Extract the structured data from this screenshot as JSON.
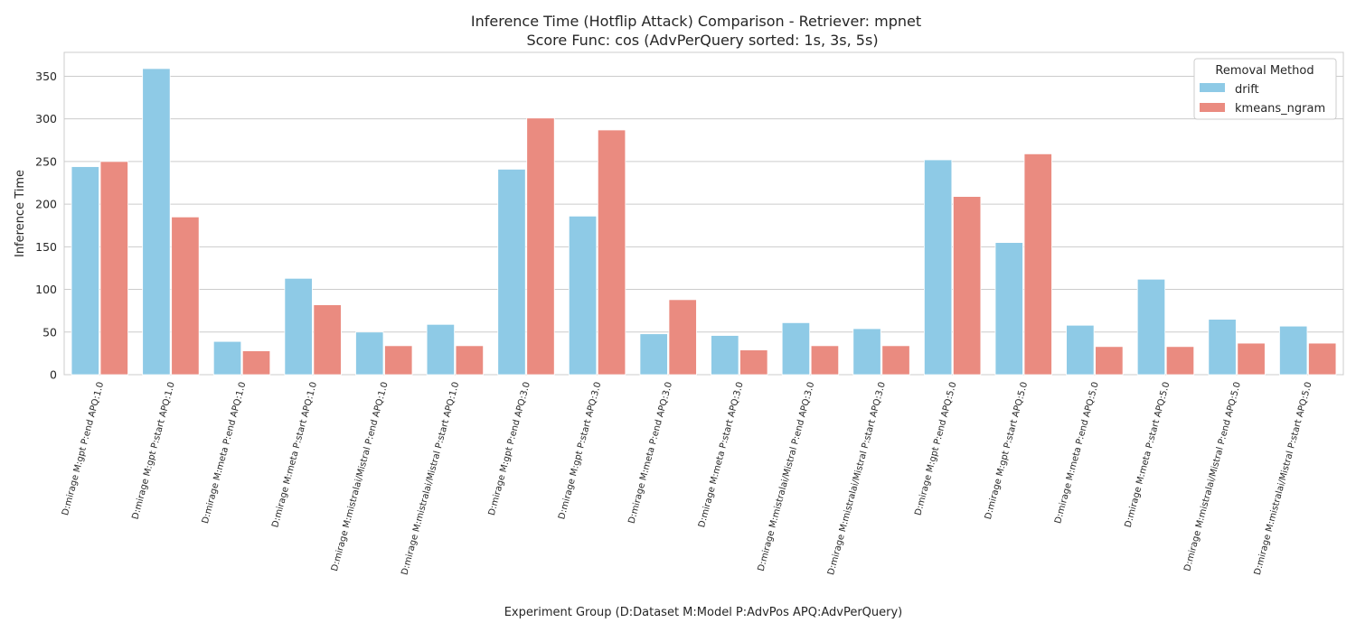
{
  "chart_data": {
    "type": "bar",
    "title_line1": "Inference Time (Hotflip Attack) Comparison - Retriever: mpnet",
    "title_line2": "Score Func: cos (AdvPerQuery sorted: 1s, 3s, 5s)",
    "xlabel": "Experiment Group (D:Dataset M:Model P:AdvPos APQ:AdvPerQuery)",
    "ylabel": "Inference Time",
    "ylim": [
      0,
      378
    ],
    "yticks": [
      0,
      50,
      100,
      150,
      200,
      250,
      300,
      350
    ],
    "grid": true,
    "legend": {
      "title": "Removal Method",
      "placement": "top-right"
    },
    "categories": [
      "D:mirage M:gpt P:end APQ:1.0",
      "D:mirage M:gpt P:start APQ:1.0",
      "D:mirage M:meta P:end APQ:1.0",
      "D:mirage M:meta P:start APQ:1.0",
      "D:mirage M:mistralai/Mistral P:end APQ:1.0",
      "D:mirage M:mistralai/Mistral P:start APQ:1.0",
      "D:mirage M:gpt P:end APQ:3.0",
      "D:mirage M:gpt P:start APQ:3.0",
      "D:mirage M:meta P:end APQ:3.0",
      "D:mirage M:meta P:start APQ:3.0",
      "D:mirage M:mistralai/Mistral P:end APQ:3.0",
      "D:mirage M:mistralai/Mistral P:start APQ:3.0",
      "D:mirage M:gpt P:end APQ:5.0",
      "D:mirage M:gpt P:start APQ:5.0",
      "D:mirage M:meta P:end APQ:5.0",
      "D:mirage M:meta P:start APQ:5.0",
      "D:mirage M:mistralai/Mistral P:end APQ:5.0",
      "D:mirage M:mistralai/Mistral P:start APQ:5.0"
    ],
    "series": [
      {
        "name": "drift",
        "color": "#8ecae6",
        "values": [
          244,
          359,
          39,
          113,
          50,
          59,
          241,
          186,
          48,
          46,
          61,
          54,
          252,
          155,
          58,
          112,
          65,
          57
        ]
      },
      {
        "name": "kmeans_ngram",
        "color": "#ea8b80",
        "values": [
          250,
          185,
          28,
          82,
          34,
          34,
          301,
          287,
          88,
          29,
          34,
          34,
          209,
          259,
          33,
          33,
          37,
          37
        ]
      }
    ]
  }
}
